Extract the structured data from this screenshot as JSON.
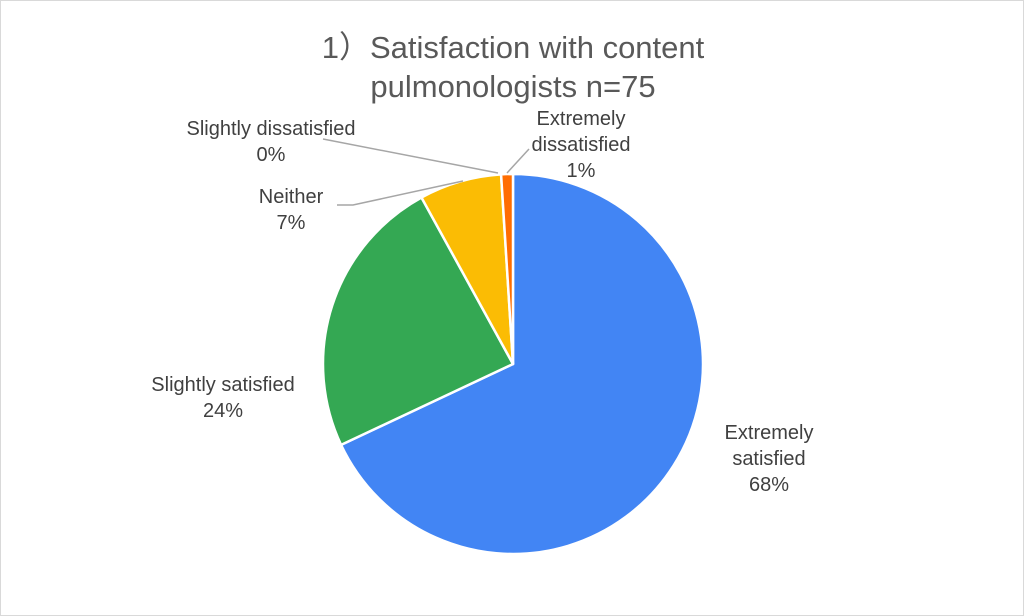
{
  "chart_data": {
    "type": "pie",
    "title_lines": [
      "1）Satisfaction with content",
      "pulmonologists n=75"
    ],
    "legend": "none",
    "slices": [
      {
        "name": "Extremely satisfied",
        "name_lines": [
          "Extremely",
          "satisfied"
        ],
        "value": 68,
        "pct_label": "68%",
        "color": "#4285F4"
      },
      {
        "name": "Slightly satisfied",
        "name_lines": [
          "Slightly satisfied"
        ],
        "value": 24,
        "pct_label": "24%",
        "color": "#34A853"
      },
      {
        "name": "Neither",
        "name_lines": [
          "Neither"
        ],
        "value": 7,
        "pct_label": "7%",
        "color": "#FBBC04"
      },
      {
        "name": "Slightly dissatisfied",
        "name_lines": [
          "Slightly dissatisfied"
        ],
        "value": 0,
        "pct_label": "0%",
        "color": "#EA4335"
      },
      {
        "name": "Extremely dissatisfied",
        "name_lines": [
          "Extremely",
          "dissatisfied"
        ],
        "value": 1,
        "pct_label": "1%",
        "color": "#FF6D01"
      }
    ]
  }
}
